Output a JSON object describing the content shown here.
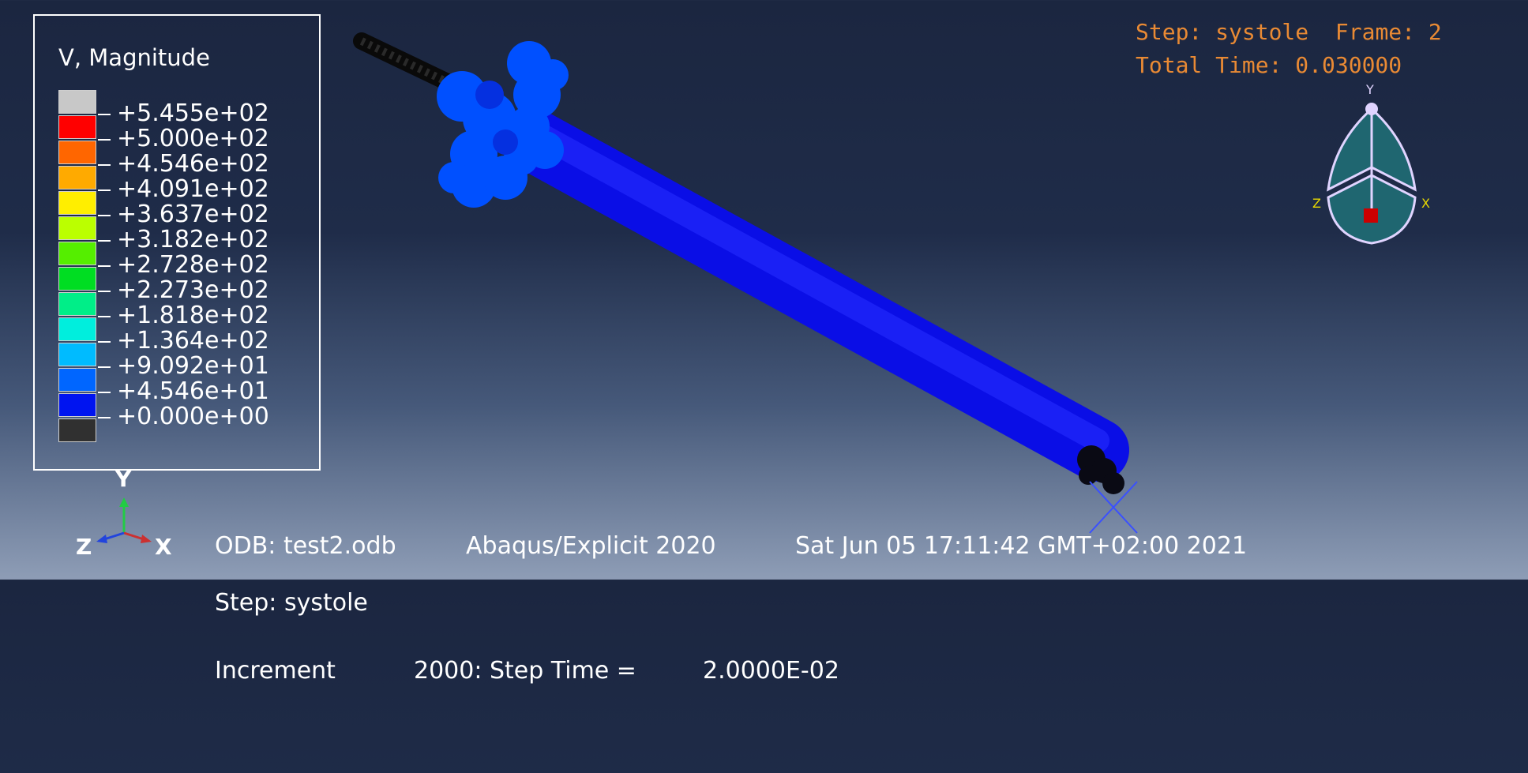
{
  "legend": {
    "title": "V, Magnitude",
    "colors": [
      "#c8c8c8",
      "#ff0000",
      "#ff6600",
      "#ffaa00",
      "#ffee00",
      "#bbff00",
      "#55ee00",
      "#00dd22",
      "#00ee88",
      "#00eedd",
      "#00bbff",
      "#0066ff",
      "#0014f0",
      "#303030"
    ],
    "values": [
      "+5.455e+02",
      "+5.000e+02",
      "+4.546e+02",
      "+4.091e+02",
      "+3.637e+02",
      "+3.182e+02",
      "+2.728e+02",
      "+2.273e+02",
      "+1.818e+02",
      "+1.364e+02",
      "+9.092e+01",
      "+4.546e+01",
      "+0.000e+00"
    ]
  },
  "step_info": {
    "step": "Step: systole",
    "frame": "Frame: 2",
    "total_time": "Total Time: 0.030000"
  },
  "footer": {
    "odb": "ODB: test2.odb",
    "solver": "Abaqus/Explicit 2020",
    "date": "Sat Jun 05 17:11:42 GMT+02:00 2021",
    "step": "Step: systole",
    "increment_label": "Increment",
    "increment_value": "2000: Step Time =",
    "step_time": "2.0000E-02"
  },
  "triad": {
    "y": "Y",
    "z": "Z",
    "x": "X"
  },
  "view_cube": {
    "y": "Y",
    "z": "Z",
    "x": "X"
  }
}
